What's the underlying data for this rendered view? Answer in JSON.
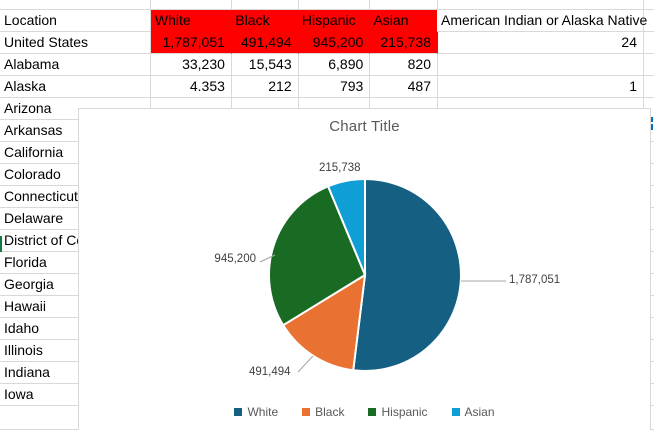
{
  "spreadsheet": {
    "header_row": {
      "cells": [
        "Location",
        "White",
        "Black",
        "Hispanic",
        "Asian",
        "American Indian or Alaska Native"
      ],
      "highlight_fill": "#FF0000"
    },
    "rows": [
      {
        "label": "United States",
        "values": [
          "1,787,051",
          "491,494",
          "945,200",
          "215,738",
          "24"
        ],
        "highlight": true
      },
      {
        "label": "Alabama",
        "values": [
          "33,230",
          "15,543",
          "6,890",
          "820",
          ""
        ],
        "highlight": false
      },
      {
        "label": "Alaska",
        "values": [
          "4.353",
          "212",
          "793",
          "487",
          "1"
        ],
        "highlight": false
      },
      {
        "label": "Arizona",
        "values": [
          "",
          "",
          "",
          "",
          ""
        ],
        "highlight": false
      },
      {
        "label": "Arkansas",
        "values": [
          "",
          "",
          "",
          "",
          ""
        ],
        "highlight": false
      },
      {
        "label": "California",
        "values": [
          "",
          "",
          "",
          "",
          ""
        ],
        "highlight": false
      },
      {
        "label": "Colorado",
        "values": [
          "",
          "",
          "",
          "",
          ""
        ],
        "highlight": false
      },
      {
        "label": "Connecticut",
        "values": [
          "",
          "",
          "",
          "",
          ""
        ],
        "highlight": false
      },
      {
        "label": "Delaware",
        "values": [
          "",
          "",
          "",
          "",
          ""
        ],
        "highlight": false
      },
      {
        "label": "District of Columbia",
        "values": [
          "",
          "",
          "",
          "",
          ""
        ],
        "highlight": false
      },
      {
        "label": "Florida",
        "values": [
          "",
          "",
          "",
          "",
          ""
        ],
        "highlight": false
      },
      {
        "label": "Georgia",
        "values": [
          "",
          "",
          "",
          "",
          ""
        ],
        "highlight": false
      },
      {
        "label": "Hawaii",
        "values": [
          "",
          "",
          "",
          "",
          ""
        ],
        "highlight": false
      },
      {
        "label": "Idaho",
        "values": [
          "",
          "",
          "",
          "",
          ""
        ],
        "highlight": false
      },
      {
        "label": "Illinois",
        "values": [
          "",
          "",
          "",
          "",
          ""
        ],
        "highlight": false
      },
      {
        "label": "Indiana",
        "values": [
          "",
          "",
          "",
          "",
          ""
        ],
        "highlight": false
      },
      {
        "label": "Iowa",
        "values": [
          "",
          "",
          "",
          "",
          ""
        ],
        "highlight": false
      }
    ]
  },
  "chart_data": {
    "type": "pie",
    "title": "Chart Title",
    "categories": [
      "White",
      "Black",
      "Hispanic",
      "Asian"
    ],
    "values": [
      1787051,
      491494,
      945200,
      215738
    ],
    "data_labels": [
      "1,787,051",
      "491,494",
      "945,200",
      "215,738"
    ],
    "colors": [
      "#156082",
      "#E97132",
      "#196B24",
      "#0F9ED5"
    ],
    "legend_position": "bottom",
    "start_angle_deg": 0,
    "direction": "clockwise",
    "title_color": "#595959",
    "label_color": "#404040",
    "leader_line_color": "#A6A6A6"
  },
  "edge_marks": {
    "selection_accent_color": "#107C41",
    "clipped_digit_color": "#0070C0"
  }
}
